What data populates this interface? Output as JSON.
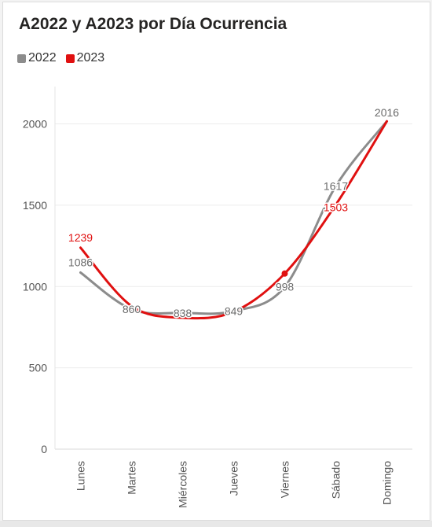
{
  "title": "A2022 y A2023 por Día Ocurrencia",
  "legend": [
    {
      "label": "2022",
      "color": "#8c8c8c"
    },
    {
      "label": "2023",
      "color": "#e01010"
    }
  ],
  "chart_data": {
    "type": "line",
    "title": "A2022 y A2023 por Día Ocurrencia",
    "categories": [
      "Lunes",
      "Martes",
      "Miércoles",
      "Jueves",
      "Viernes",
      "Sábado",
      "Domingo"
    ],
    "series": [
      {
        "name": "2022",
        "color": "#8c8c8c",
        "values": [
          1086,
          860,
          838,
          849,
          998,
          1617,
          2016
        ],
        "show_labels": true
      },
      {
        "name": "2023",
        "color": "#e01010",
        "values": [
          1239,
          880,
          808,
          845,
          1080,
          1503,
          2016
        ],
        "show_labels": [
          true,
          false,
          false,
          false,
          false,
          true,
          false
        ]
      }
    ],
    "yticks": [
      0,
      500,
      1000,
      1500,
      2000
    ],
    "ylim": [
      0,
      2230
    ],
    "grid": true,
    "legend_position": "top-left",
    "highlight": {
      "series": "2023",
      "category": "Viernes"
    }
  }
}
